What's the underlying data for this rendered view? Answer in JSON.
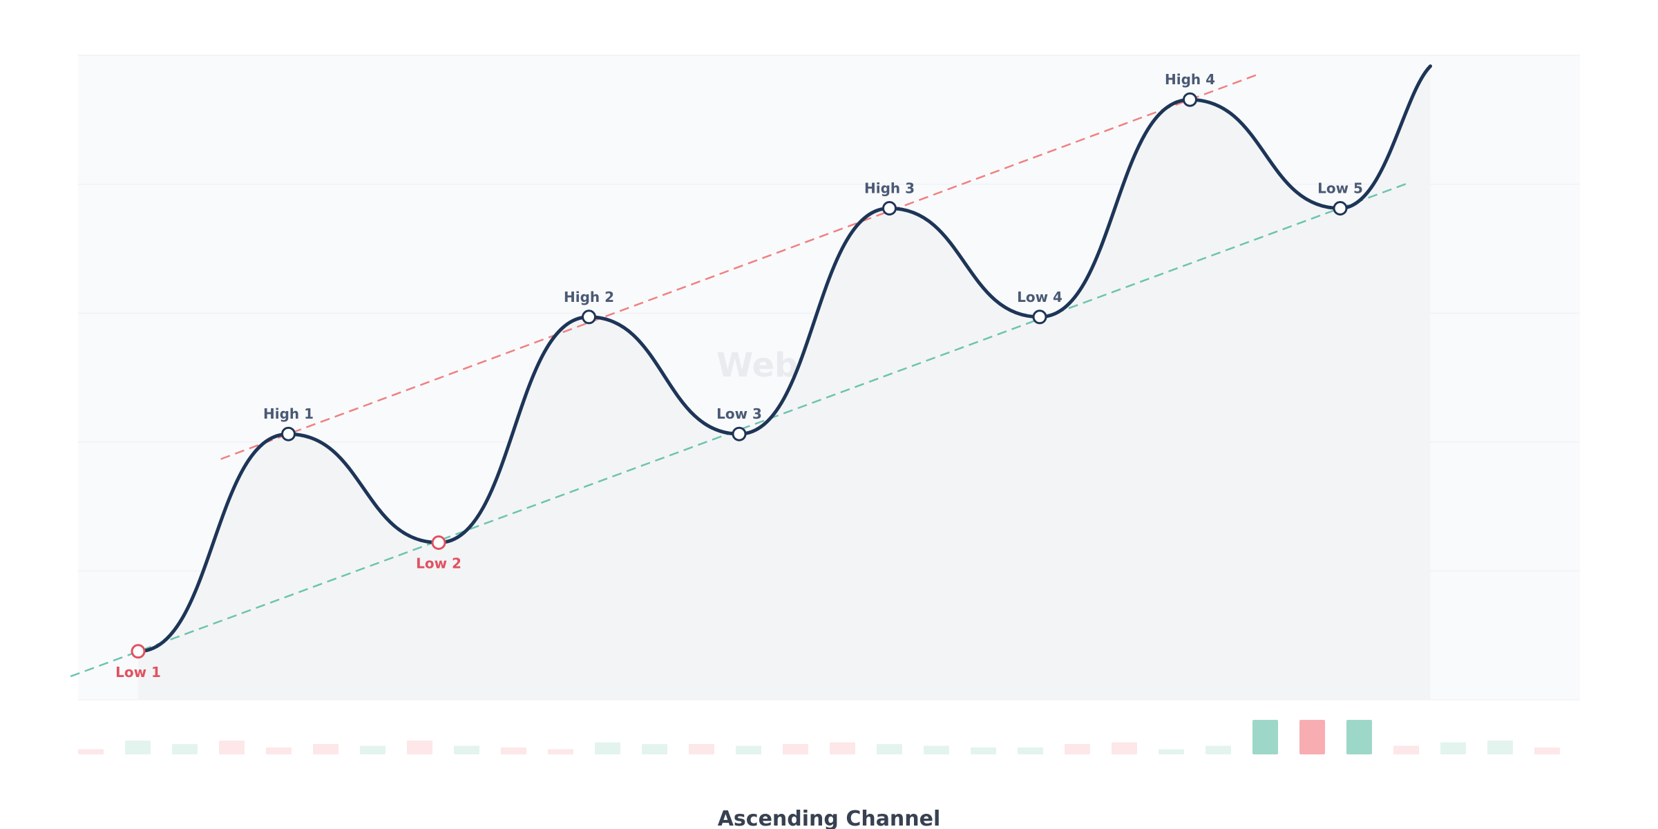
{
  "chart_data": {
    "type": "line",
    "title": "Ascending Channel",
    "watermark": "Webtrader.cz",
    "xlim": [
      0,
      10
    ],
    "ylim": [
      0,
      1
    ],
    "grid": true,
    "pivots": [
      {
        "label": "Low 1",
        "x": 0,
        "y": 0.12,
        "kind": "low",
        "highlight": true
      },
      {
        "label": "High 1",
        "x": 1,
        "y": 0.38,
        "kind": "high",
        "highlight": false
      },
      {
        "label": "Low 2",
        "x": 2,
        "y": 0.25,
        "kind": "low",
        "highlight": true
      },
      {
        "label": "High 2",
        "x": 3,
        "y": 0.52,
        "kind": "high",
        "highlight": false
      },
      {
        "label": "Low 3",
        "x": 4,
        "y": 0.38,
        "kind": "high",
        "highlight": false
      },
      {
        "label": "High 3",
        "x": 5,
        "y": 0.65,
        "kind": "high",
        "highlight": false
      },
      {
        "label": "Low 4",
        "x": 6,
        "y": 0.52,
        "kind": "high",
        "highlight": false
      },
      {
        "label": "High 4",
        "x": 7,
        "y": 0.78,
        "kind": "high",
        "highlight": false
      },
      {
        "label": "Low 5",
        "x": 8,
        "y": 0.65,
        "kind": "high",
        "highlight": false
      }
    ],
    "line_end": {
      "x": 8.6,
      "y": 0.82
    },
    "resistance_line": {
      "from": {
        "x": 0.55,
        "y": 0.35
      },
      "to": {
        "x": 7.45,
        "y": 0.81
      }
    },
    "support_line": {
      "from": {
        "x": -0.45,
        "y": 0.09
      },
      "to": {
        "x": 8.45,
        "y": 0.68
      }
    },
    "volume": [
      {
        "v": 0.15,
        "dir": "down"
      },
      {
        "v": 0.4,
        "dir": "up"
      },
      {
        "v": 0.3,
        "dir": "up"
      },
      {
        "v": 0.4,
        "dir": "down"
      },
      {
        "v": 0.2,
        "dir": "down"
      },
      {
        "v": 0.3,
        "dir": "down"
      },
      {
        "v": 0.25,
        "dir": "up"
      },
      {
        "v": 0.4,
        "dir": "down"
      },
      {
        "v": 0.25,
        "dir": "up"
      },
      {
        "v": 0.2,
        "dir": "down"
      },
      {
        "v": 0.15,
        "dir": "down"
      },
      {
        "v": 0.35,
        "dir": "up"
      },
      {
        "v": 0.3,
        "dir": "up"
      },
      {
        "v": 0.3,
        "dir": "down"
      },
      {
        "v": 0.25,
        "dir": "up"
      },
      {
        "v": 0.3,
        "dir": "down"
      },
      {
        "v": 0.35,
        "dir": "down"
      },
      {
        "v": 0.3,
        "dir": "up"
      },
      {
        "v": 0.25,
        "dir": "up"
      },
      {
        "v": 0.2,
        "dir": "up"
      },
      {
        "v": 0.2,
        "dir": "up"
      },
      {
        "v": 0.3,
        "dir": "down"
      },
      {
        "v": 0.35,
        "dir": "down"
      },
      {
        "v": 0.15,
        "dir": "up"
      },
      {
        "v": 0.25,
        "dir": "up"
      },
      {
        "v": 1.0,
        "dir": "up",
        "strong": true
      },
      {
        "v": 1.0,
        "dir": "down",
        "strong": true
      },
      {
        "v": 1.0,
        "dir": "up",
        "strong": true
      },
      {
        "v": 0.25,
        "dir": "down"
      },
      {
        "v": 0.35,
        "dir": "up"
      },
      {
        "v": 0.4,
        "dir": "up"
      },
      {
        "v": 0.2,
        "dir": "down"
      }
    ],
    "colors": {
      "line": "#1d3557",
      "resistance": "#f08080",
      "support": "#6cc4ad",
      "label_default": "#4a5a75",
      "label_highlight": "#e05260",
      "vol_up": "#e3f4ee",
      "vol_down": "#fde7e8",
      "vol_up_strong": "#9dd7c8",
      "vol_down_strong": "#f8adb2",
      "plot_bg": "#f9fafc",
      "area_fill": "#f3f4f6",
      "grid": "#eceef2",
      "title": "#374151",
      "watermark": "#e9ebef"
    }
  }
}
